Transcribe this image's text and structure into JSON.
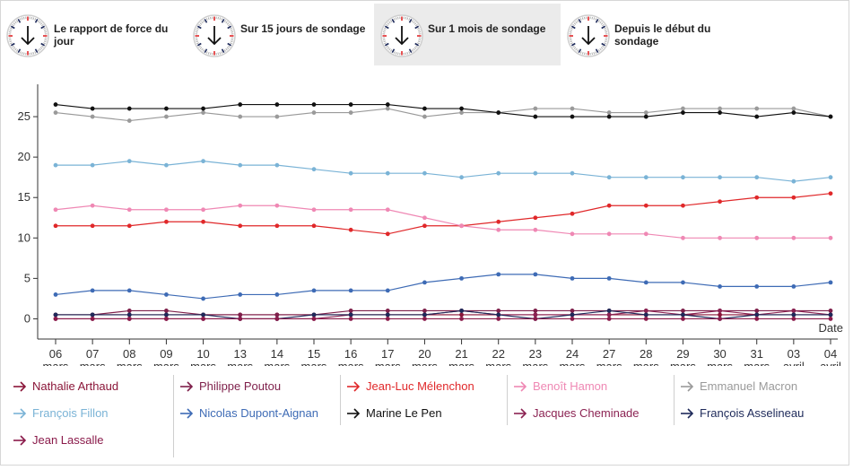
{
  "tabs": [
    {
      "label": "Le rapport de force du jour",
      "active": false
    },
    {
      "label": "Sur 15 jours de sondage",
      "active": false
    },
    {
      "label": "Sur 1 mois de sondage",
      "active": true
    },
    {
      "label": "Depuis le début du sondage",
      "active": false
    }
  ],
  "chart_data": {
    "type": "line",
    "xlabel": "Date",
    "ylabel": "",
    "ylim": [
      -2.5,
      29
    ],
    "yticks": [
      0,
      5,
      10,
      15,
      20,
      25
    ],
    "grid": false,
    "categories": [
      "06 mars",
      "07 mars",
      "08 mars",
      "09 mars",
      "10 mars",
      "13 mars",
      "14 mars",
      "15 mars",
      "16 mars",
      "17 mars",
      "20 mars",
      "21 mars",
      "22 mars",
      "23 mars",
      "24 mars",
      "27 mars",
      "28 mars",
      "29 mars",
      "30 mars",
      "31 mars",
      "03 avril",
      "04 avril"
    ],
    "series": [
      {
        "name": "Nathalie Arthaud",
        "color": "#8a1538",
        "values": [
          0.5,
          0.5,
          0.5,
          0.5,
          0.5,
          0.5,
          0.5,
          0.5,
          0.5,
          0.5,
          0.5,
          0.5,
          0.5,
          0.5,
          0.5,
          0.5,
          0.5,
          0.5,
          0.5,
          0.5,
          0.5,
          0.5
        ]
      },
      {
        "name": "Philippe Poutou",
        "color": "#7e1f4a",
        "values": [
          0.5,
          0.5,
          1,
          1,
          0.5,
          0.5,
          0.5,
          0.5,
          1,
          1,
          1,
          1,
          1,
          1,
          1,
          1,
          1,
          1,
          1,
          1,
          1,
          1
        ]
      },
      {
        "name": "Jean-Luc Mélenchon",
        "color": "#e0282a",
        "values": [
          11.5,
          11.5,
          11.5,
          12,
          12,
          11.5,
          11.5,
          11.5,
          11,
          10.5,
          11.5,
          11.5,
          12,
          12.5,
          13,
          14,
          14,
          14,
          14.5,
          15,
          15,
          15.5
        ]
      },
      {
        "name": "Benoît Hamon",
        "color": "#ef88b4",
        "values": [
          13.5,
          14,
          13.5,
          13.5,
          13.5,
          14,
          14,
          13.5,
          13.5,
          13.5,
          12.5,
          11.5,
          11,
          11,
          10.5,
          10.5,
          10.5,
          10,
          10,
          10,
          10,
          10
        ]
      },
      {
        "name": "Emmanuel Macron",
        "color": "#9a9a9a",
        "values": [
          25.5,
          25,
          24.5,
          25,
          25.5,
          25,
          25,
          25.5,
          25.5,
          26,
          25,
          25.5,
          25.5,
          26,
          26,
          25.5,
          25.5,
          26,
          26,
          26,
          26,
          25
        ]
      },
      {
        "name": "François Fillon",
        "color": "#7ab3d6",
        "values": [
          19,
          19,
          19.5,
          19,
          19.5,
          19,
          19,
          18.5,
          18,
          18,
          18,
          17.5,
          18,
          18,
          18,
          17.5,
          17.5,
          17.5,
          17.5,
          17.5,
          17,
          17.5
        ]
      },
      {
        "name": "Nicolas Dupont-Aignan",
        "color": "#3e6bb5",
        "values": [
          3,
          3.5,
          3.5,
          3,
          2.5,
          3,
          3,
          3.5,
          3.5,
          3.5,
          4.5,
          5,
          5.5,
          5.5,
          5,
          5,
          4.5,
          4.5,
          4,
          4,
          4,
          4.5
        ]
      },
      {
        "name": "Marine Le Pen",
        "color": "#111111",
        "values": [
          26.5,
          26,
          26,
          26,
          26,
          26.5,
          26.5,
          26.5,
          26.5,
          26.5,
          26,
          26,
          25.5,
          25,
          25,
          25,
          25,
          25.5,
          25.5,
          25,
          25.5,
          25
        ]
      },
      {
        "name": "Jacques Cheminade",
        "color": "#8b2252",
        "values": [
          0,
          0,
          0,
          0,
          0,
          0,
          0,
          0,
          0.5,
          0.5,
          0.5,
          1,
          0.5,
          0.5,
          0.5,
          0.5,
          1,
          0.5,
          1,
          0.5,
          1,
          0.5
        ]
      },
      {
        "name": "François Asselineau",
        "color": "#1e2a5a",
        "values": [
          0.5,
          0.5,
          0.5,
          0.5,
          0.5,
          0,
          0,
          0.5,
          0.5,
          0.5,
          0.5,
          1,
          0.5,
          0,
          0.5,
          1,
          0.5,
          0.5,
          0,
          0.5,
          0.5,
          0.5
        ]
      },
      {
        "name": "Jean Lassalle",
        "color": "#8a1a4a",
        "values": [
          0,
          0,
          0,
          0,
          0,
          0,
          0,
          0,
          0,
          0,
          0,
          0,
          0,
          0,
          0,
          0,
          0,
          0,
          0,
          0,
          0,
          0
        ]
      }
    ]
  }
}
